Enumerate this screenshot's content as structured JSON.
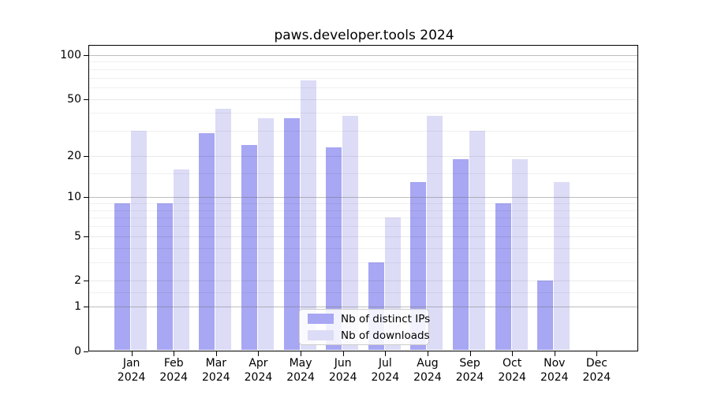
{
  "chart_data": {
    "type": "bar",
    "title": "paws.developer.tools 2024",
    "categories": [
      "Jan",
      "Feb",
      "Mar",
      "Apr",
      "May",
      "Jun",
      "Jul",
      "Aug",
      "Sep",
      "Oct",
      "Nov",
      "Dec"
    ],
    "year_label": "2024",
    "series": [
      {
        "name": "Nb of distinct IPs",
        "color": "#a7a7f3",
        "values": [
          9,
          9,
          29,
          24,
          37,
          23,
          3,
          13,
          19,
          9,
          2,
          0
        ]
      },
      {
        "name": "Nb of downloads",
        "color": "#dcdcf7",
        "values": [
          30,
          16,
          43,
          37,
          67,
          38,
          7,
          38,
          30,
          19,
          13,
          0
        ]
      }
    ],
    "xlabel": "",
    "ylabel": "",
    "yscale": "log1p",
    "ylim": [
      0,
      116
    ],
    "yticks": [
      100,
      50,
      20,
      10,
      5,
      2,
      1,
      0
    ],
    "grid": {
      "major": [
        1,
        10,
        100
      ],
      "minor": [
        2,
        5,
        20,
        50
      ],
      "sub": [
        1.5,
        3,
        4,
        6,
        7,
        8,
        9,
        15,
        30,
        40,
        60,
        70,
        80,
        90
      ]
    },
    "legend": {
      "position": "lower center",
      "entries": [
        "Nb of distinct IPs",
        "Nb of downloads"
      ]
    }
  }
}
